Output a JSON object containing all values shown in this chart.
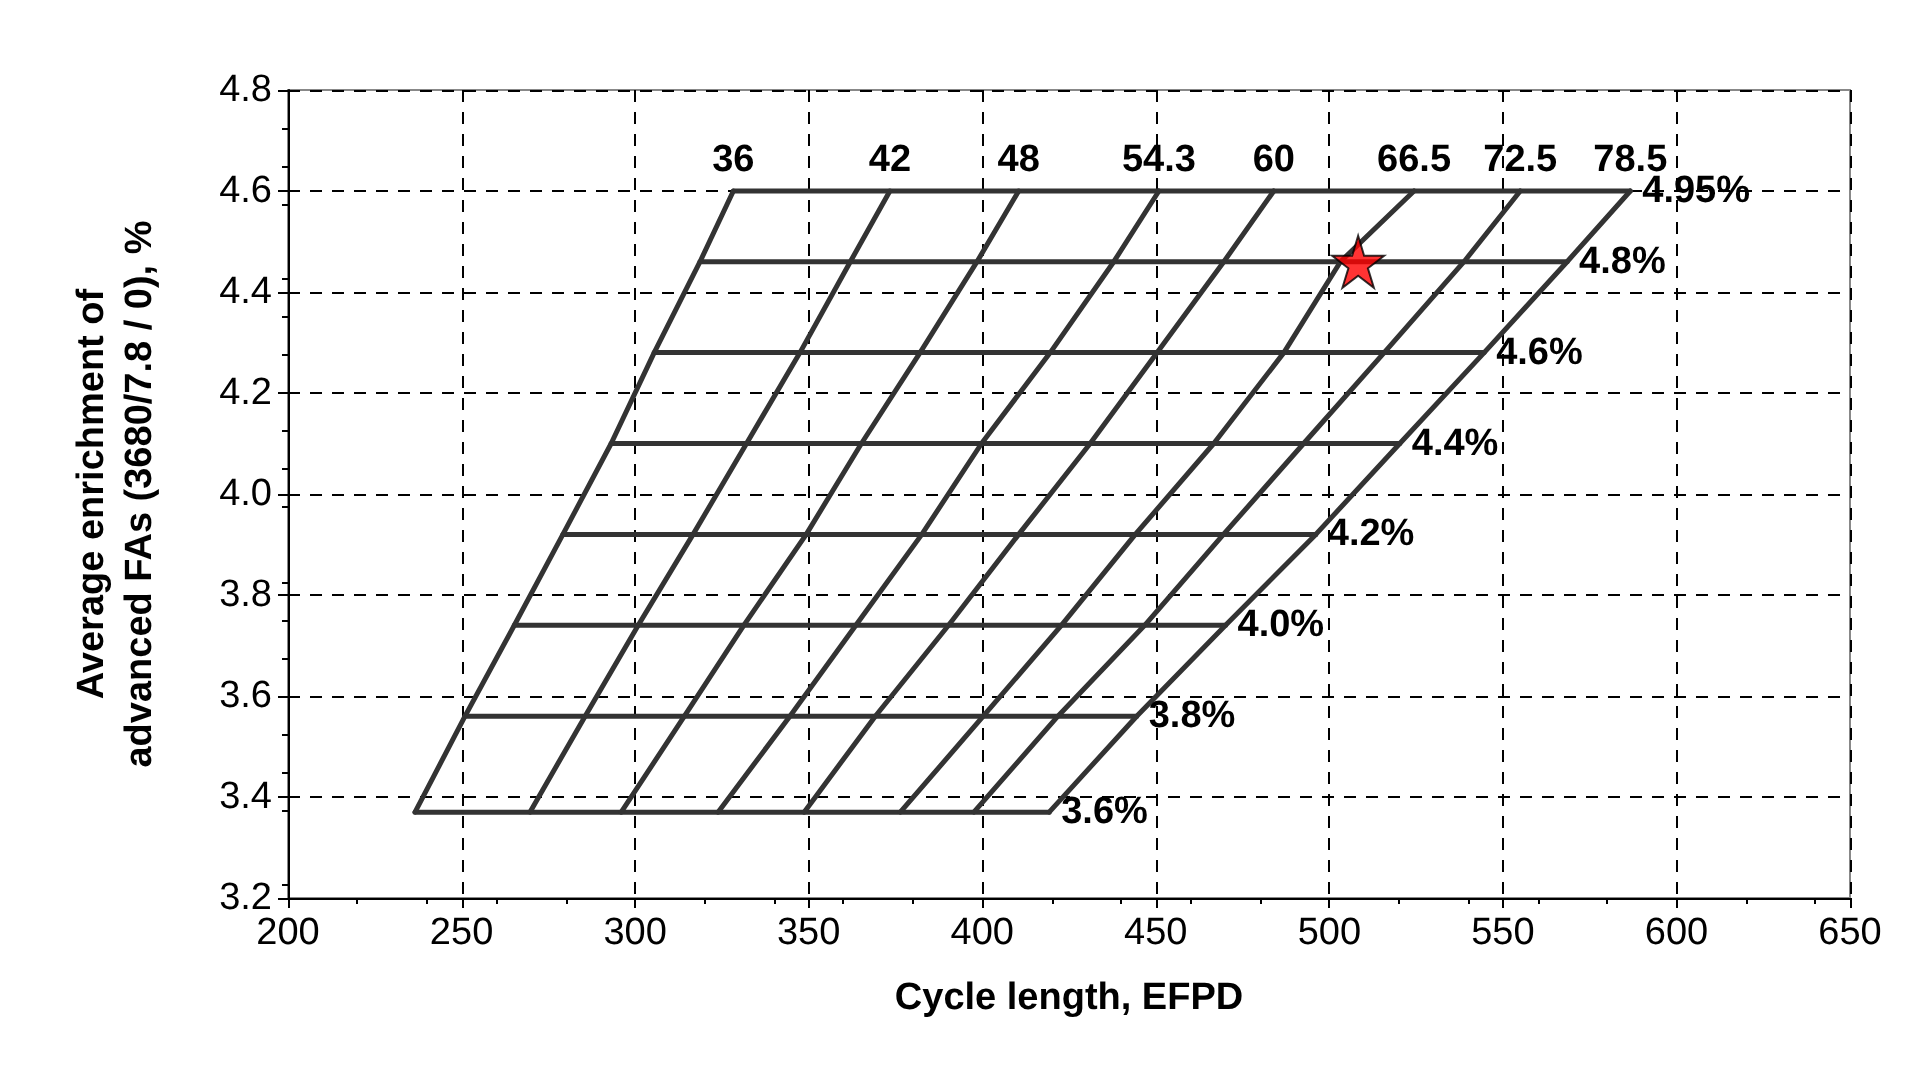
{
  "chart_data": {
    "type": "line",
    "xlabel": "Cycle length, EFPD",
    "ylabel": "Average enrichment of\nadvanced FAs (3680/7.8 / 0), %",
    "xlim": [
      200,
      650
    ],
    "xticks": [
      200,
      250,
      300,
      350,
      400,
      450,
      500,
      550,
      600,
      650
    ],
    "ylim": [
      3.2,
      4.8
    ],
    "yticks": [
      3.2,
      3.4,
      3.6,
      3.8,
      {
        "value": 4,
        "label": "4.0"
      },
      4.2,
      4.4,
      4.6,
      4.8
    ],
    "grid": true,
    "legend": false,
    "marker": "none",
    "series": [
      {
        "name": "3.6%",
        "color": "#333333",
        "x": [
          236.6,
          419.3
        ],
        "values": [
          3.37,
          3.37
        ]
      },
      {
        "name": "3.8%",
        "color": "#333333",
        "x": [
          251,
          444.5
        ],
        "values": [
          3.56,
          3.56
        ]
      },
      {
        "name": "4.0%",
        "color": "#333333",
        "x": [
          265.2,
          470.1
        ],
        "values": [
          3.74,
          3.74
        ]
      },
      {
        "name": "4.2%",
        "color": "#333333",
        "x": [
          279.2,
          496.1
        ],
        "values": [
          3.92,
          3.92
        ]
      },
      {
        "name": "4.4%",
        "color": "#333333",
        "x": [
          293.1,
          520.3
        ],
        "values": [
          4.1,
          4.1
        ]
      },
      {
        "name": "4.6%",
        "color": "#333333",
        "x": [
          305.5,
          544.6
        ],
        "values": [
          4.28,
          4.28
        ]
      },
      {
        "name": "4.8%",
        "color": "#333333",
        "x": [
          318.7,
          568.5
        ],
        "values": [
          4.46,
          4.46
        ]
      },
      {
        "name": "4.95%",
        "color": "#333333",
        "x": [
          328.3,
          586.7
        ],
        "values": [
          4.6,
          4.6
        ]
      },
      {
        "name": "36",
        "color": "#333333",
        "x": [
          236.6,
          251,
          265.2,
          279.2,
          293.1,
          305.5,
          318.7,
          328.3
        ],
        "values": [
          3.37,
          3.56,
          3.74,
          3.92,
          4.1,
          4.28,
          4.46,
          4.6
        ]
      },
      {
        "name": "42",
        "color": "#333333",
        "x": [
          269.7,
          285.6,
          300.9,
          316.7,
          332.1,
          347.5,
          362,
          373.4
        ],
        "values": [
          3.37,
          3.56,
          3.74,
          3.92,
          4.1,
          4.28,
          4.46,
          4.6
        ]
      },
      {
        "name": "48",
        "color": "#333333",
        "x": [
          296,
          314.2,
          331.3,
          349.3,
          365.2,
          382.1,
          398.5,
          410.5
        ],
        "values": [
          3.37,
          3.56,
          3.74,
          3.92,
          4.1,
          4.28,
          4.46,
          4.6
        ]
      },
      {
        "name": "54.3",
        "color": "#333333",
        "x": [
          323.9,
          344.6,
          363.6,
          382.6,
          399.8,
          419.6,
          437.9,
          450.9
        ],
        "values": [
          3.37,
          3.56,
          3.74,
          3.92,
          4.1,
          4.28,
          4.46,
          4.6
        ]
      },
      {
        "name": "60",
        "color": "#333333",
        "x": [
          348.7,
          369.2,
          390.3,
          410.5,
          431.1,
          450.4,
          469.6,
          484
        ],
        "values": [
          3.37,
          3.56,
          3.74,
          3.92,
          4.1,
          4.28,
          4.46,
          4.6
        ]
      },
      {
        "name": "66.5",
        "color": "#333333",
        "x": [
          376.4,
          400.3,
          422.8,
          444.1,
          466.7,
          486.9,
          503.2,
          524.4
        ],
        "values": [
          3.37,
          3.56,
          3.74,
          3.92,
          4.1,
          4.28,
          4.46,
          4.6
        ]
      },
      {
        "name": "72.5",
        "color": "#333333",
        "x": [
          397.6,
          421.8,
          446.8,
          469.5,
          492.6,
          515.8,
          538.8,
          555
        ],
        "values": [
          3.37,
          3.56,
          3.74,
          3.92,
          4.1,
          4.28,
          4.46,
          4.6
        ]
      },
      {
        "name": "78.5",
        "color": "#333333",
        "x": [
          419.3,
          444.5,
          470.1,
          496.1,
          520.3,
          544.6,
          568.5,
          586.7
        ],
        "values": [
          3.37,
          3.56,
          3.74,
          3.92,
          4.1,
          4.28,
          4.46,
          4.6
        ]
      },
      {
        "type": "scatter",
        "marker": "star",
        "color": "#ff0000",
        "x": [
          508.3
        ],
        "values": [
          4.46
        ]
      }
    ]
  }
}
